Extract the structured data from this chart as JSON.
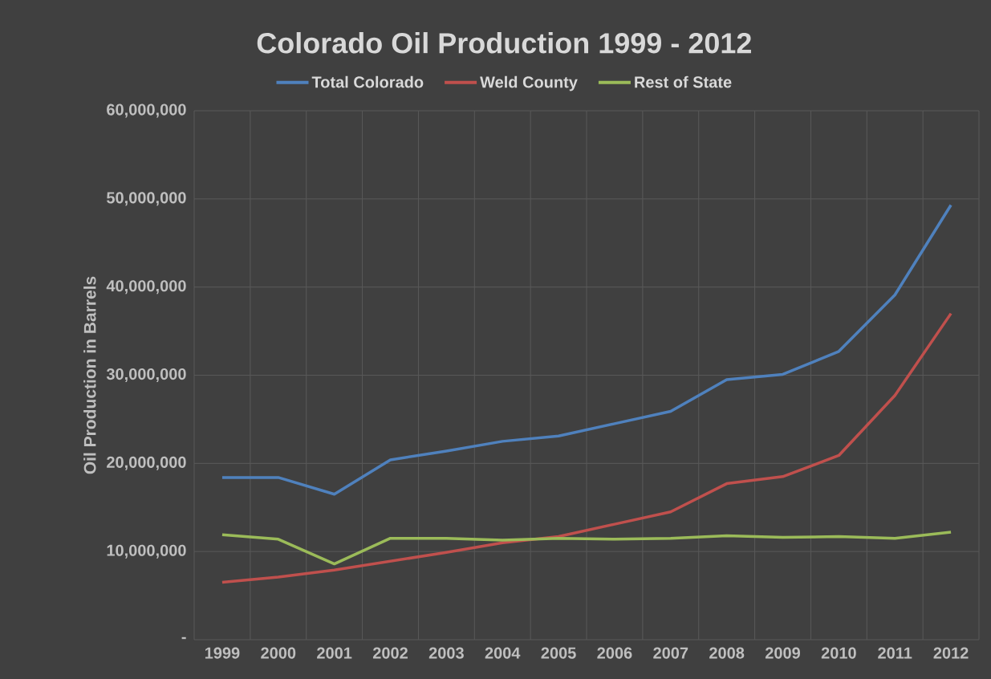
{
  "chart_data": {
    "type": "line",
    "title": "Colorado Oil Production 1999 - 2012",
    "ylabel": "Oil Production in Barrels",
    "categories": [
      "1999",
      "2000",
      "2001",
      "2002",
      "2003",
      "2004",
      "2005",
      "2006",
      "2007",
      "2008",
      "2009",
      "2010",
      "2011",
      "2012"
    ],
    "series": [
      {
        "name": "Total Colorado",
        "color": "#4f81bd",
        "values": [
          18400000,
          18400000,
          16500000,
          20400000,
          21400000,
          22500000,
          23100000,
          24500000,
          25900000,
          29500000,
          30100000,
          32700000,
          39100000,
          49300000
        ]
      },
      {
        "name": "Weld County",
        "color": "#c0504d",
        "values": [
          6500000,
          7100000,
          7900000,
          8900000,
          9900000,
          11000000,
          11700000,
          13100000,
          14500000,
          17700000,
          18500000,
          20900000,
          27700000,
          37000000
        ]
      },
      {
        "name": "Rest of State",
        "color": "#9bbb59",
        "values": [
          11900000,
          11400000,
          8600000,
          11500000,
          11500000,
          11300000,
          11500000,
          11400000,
          11500000,
          11800000,
          11600000,
          11700000,
          11500000,
          12200000
        ]
      }
    ],
    "ylim": [
      0,
      60000000
    ],
    "yticks": [
      {
        "value": 0,
        "label": "-"
      },
      {
        "value": 10000000,
        "label": "10,000,000"
      },
      {
        "value": 20000000,
        "label": "20,000,000"
      },
      {
        "value": 30000000,
        "label": "30,000,000"
      },
      {
        "value": 40000000,
        "label": "40,000,000"
      },
      {
        "value": 50000000,
        "label": "50,000,000"
      },
      {
        "value": 60000000,
        "label": "60,000,000"
      }
    ],
    "grid": true,
    "legend": "top",
    "marker": "none",
    "line_style": "solid"
  }
}
